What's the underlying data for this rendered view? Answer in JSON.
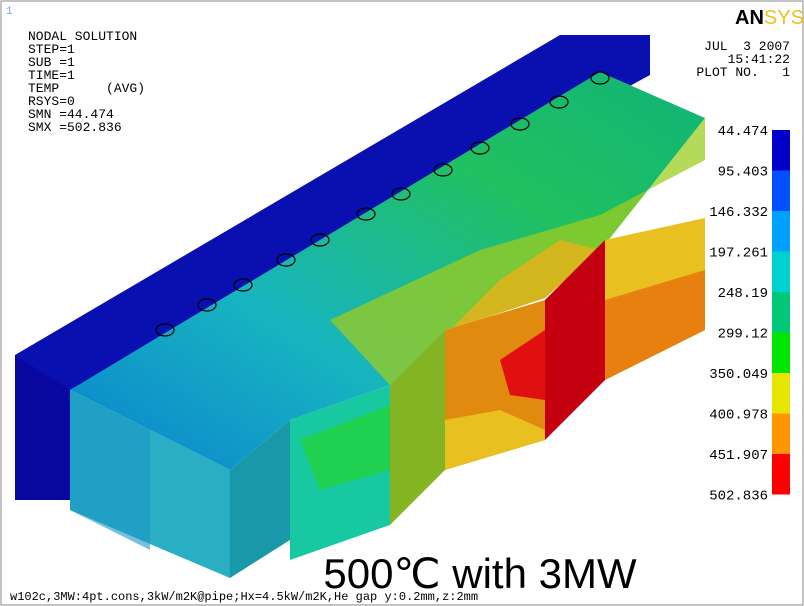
{
  "window_number": "1",
  "info": [
    "NODAL SOLUTION",
    "STEP=1",
    "SUB =1",
    "TIME=1",
    "TEMP      (AVG)",
    "RSYS=0",
    "SMN =44.474",
    "SMX =502.836"
  ],
  "logo": {
    "bold": "AN",
    "light": "SYS"
  },
  "stamp": [
    "JUL  3 2007",
    "15:41:22",
    "PLOT NO.   1"
  ],
  "legend": [
    44.474,
    95.403,
    146.332,
    197.261,
    248.19,
    299.12,
    350.049,
    400.978,
    451.907,
    502.836
  ],
  "caption": "500℃ with 3MW",
  "footer": "w102c,3MW:4pt.cons,3kW/m2K@pipe;Hx=4.5kW/m2K,He gap y:0.2mm,z:2mm"
}
